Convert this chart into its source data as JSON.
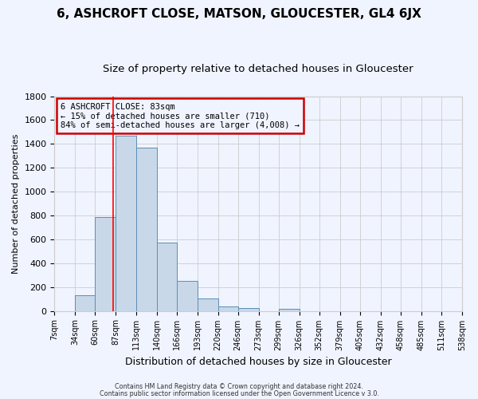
{
  "title": "6, ASHCROFT CLOSE, MATSON, GLOUCESTER, GL4 6JX",
  "subtitle": "Size of property relative to detached houses in Gloucester",
  "xlabel": "Distribution of detached houses by size in Gloucester",
  "ylabel": "Number of detached properties",
  "bin_labels": [
    "7sqm",
    "34sqm",
    "60sqm",
    "87sqm",
    "113sqm",
    "140sqm",
    "166sqm",
    "193sqm",
    "220sqm",
    "246sqm",
    "273sqm",
    "299sqm",
    "326sqm",
    "352sqm",
    "379sqm",
    "405sqm",
    "432sqm",
    "458sqm",
    "485sqm",
    "511sqm",
    "538sqm"
  ],
  "bar_heights": [
    0,
    130,
    790,
    1470,
    1370,
    570,
    250,
    105,
    35,
    25,
    0,
    15,
    0,
    0,
    0,
    0,
    0,
    0,
    0,
    0
  ],
  "bin_edges": [
    7,
    34,
    60,
    87,
    113,
    140,
    166,
    193,
    220,
    246,
    273,
    299,
    326,
    352,
    379,
    405,
    432,
    458,
    485,
    511,
    538
  ],
  "bar_color": "#c8d8e8",
  "bar_edge_color": "#5b8db8",
  "vline_x": 83,
  "vline_color": "#ff0000",
  "ylim": [
    0,
    1800
  ],
  "yticks": [
    0,
    200,
    400,
    600,
    800,
    1000,
    1200,
    1400,
    1600,
    1800
  ],
  "annotation_line1": "6 ASHCROFT CLOSE: 83sqm",
  "annotation_line2": "← 15% of detached houses are smaller (710)",
  "annotation_line3": "84% of semi-detached houses are larger (4,008) →",
  "annotation_box_color": "#cc0000",
  "footer_line1": "Contains HM Land Registry data © Crown copyright and database right 2024.",
  "footer_line2": "Contains public sector information licensed under the Open Government Licence v 3.0.",
  "grid_color": "#cccccc",
  "background_color": "#f0f4ff",
  "title_fontsize": 11,
  "subtitle_fontsize": 9.5
}
